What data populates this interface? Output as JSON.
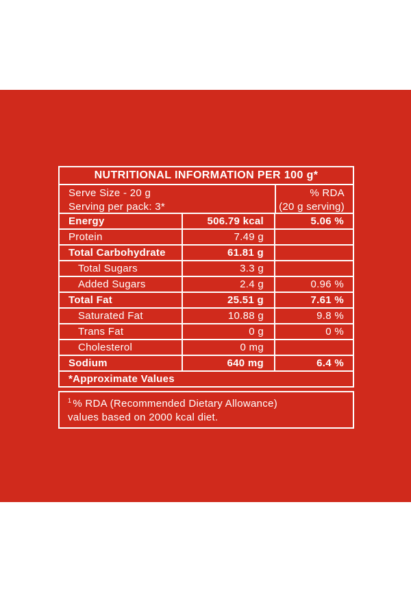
{
  "colors": {
    "panel_red": "#d02a1c",
    "border_white": "#ffffff",
    "text_white": "#ffffff",
    "page_background": "#ffffff"
  },
  "table": {
    "title": "NUTRITIONAL INFORMATION PER 100 g*",
    "serve_info": {
      "line1": "Serve Size - 20 g",
      "line2": "Serving per pack: 3*"
    },
    "rda_header": {
      "line1": "% RDA",
      "line2": "(20 g serving)"
    },
    "rows": [
      {
        "name": "Energy",
        "amount": "506.79 kcal",
        "rda": "5.06 %"
      },
      {
        "name": "Protein",
        "amount": "7.49 g",
        "rda": ""
      },
      {
        "name": "Total Carbohydrate",
        "amount": "61.81 g",
        "rda": ""
      },
      {
        "name": "Total Sugars",
        "amount": "3.3 g",
        "rda": ""
      },
      {
        "name": "Added Sugars",
        "amount": "2.4 g",
        "rda": "0.96 %"
      },
      {
        "name": "Total Fat",
        "amount": "25.51 g",
        "rda": "7.61 %"
      },
      {
        "name": "Saturated Fat",
        "amount": "10.88 g",
        "rda": "9.8 %"
      },
      {
        "name": "Trans Fat",
        "amount": "0 g",
        "rda": "0 %"
      },
      {
        "name": "Cholesterol",
        "amount": "0 mg",
        "rda": ""
      },
      {
        "name": "Sodium",
        "amount": "640 mg",
        "rda": "6.4 %"
      }
    ],
    "approximate_note": "*Approximate Values",
    "footnote": {
      "sup": "1",
      "line1": "% RDA (Recommended Dietary Allowance)",
      "line2": "values based on 2000 kcal diet."
    }
  }
}
